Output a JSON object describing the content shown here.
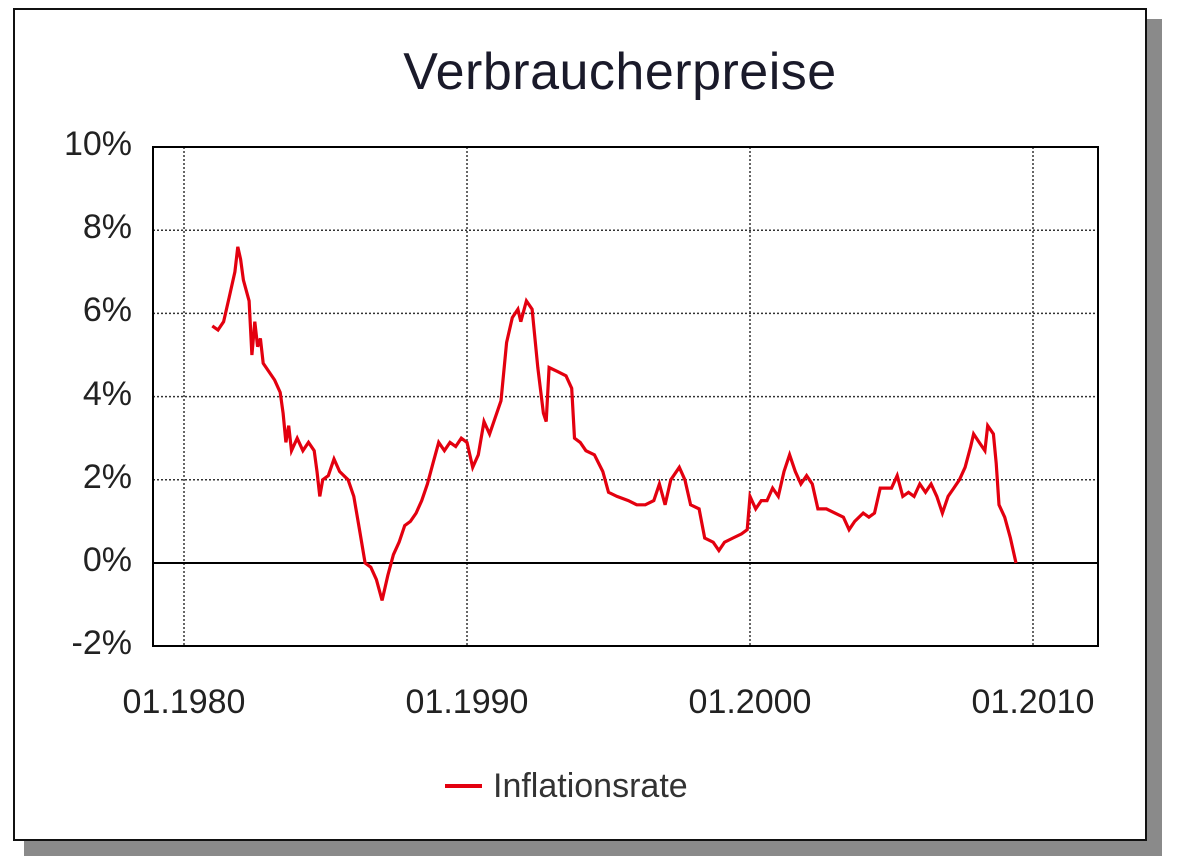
{
  "window": {
    "frame_color": "#111111",
    "shadow_color": "#8a8a8a"
  },
  "chart_data": {
    "type": "line",
    "title": "Verbraucherpreise",
    "xlabel": "",
    "ylabel": "",
    "x_tick_labels": [
      "01.1980",
      "01.1990",
      "01.2000",
      "01.2010"
    ],
    "x_ticks": [
      1980,
      1990,
      2000,
      2010
    ],
    "y_tick_labels": [
      "10%",
      "8%",
      "6%",
      "4%",
      "2%",
      "0%",
      "-2%"
    ],
    "y_ticks": [
      10,
      8,
      6,
      4,
      2,
      0,
      -2
    ],
    "xlim": [
      1979.1,
      2012.3
    ],
    "ylim": [
      -2,
      10
    ],
    "grid": true,
    "legend_position": "bottom",
    "series": [
      {
        "name": "Inflationsrate",
        "color": "#e3000f",
        "points": [
          [
            1981.0,
            5.7
          ],
          [
            1981.2,
            5.6
          ],
          [
            1981.4,
            5.8
          ],
          [
            1981.6,
            6.4
          ],
          [
            1981.8,
            7.0
          ],
          [
            1981.9,
            7.6
          ],
          [
            1982.0,
            7.3
          ],
          [
            1982.1,
            6.8
          ],
          [
            1982.3,
            6.3
          ],
          [
            1982.4,
            5.0
          ],
          [
            1982.5,
            5.8
          ],
          [
            1982.6,
            5.2
          ],
          [
            1982.7,
            5.4
          ],
          [
            1982.8,
            4.8
          ],
          [
            1983.0,
            4.6
          ],
          [
            1983.2,
            4.4
          ],
          [
            1983.4,
            4.1
          ],
          [
            1983.5,
            3.6
          ],
          [
            1983.6,
            2.9
          ],
          [
            1983.7,
            3.3
          ],
          [
            1983.8,
            2.7
          ],
          [
            1984.0,
            3.0
          ],
          [
            1984.2,
            2.7
          ],
          [
            1984.4,
            2.9
          ],
          [
            1984.6,
            2.7
          ],
          [
            1984.7,
            2.2
          ],
          [
            1984.8,
            1.6
          ],
          [
            1984.9,
            2.0
          ],
          [
            1985.1,
            2.1
          ],
          [
            1985.3,
            2.5
          ],
          [
            1985.5,
            2.2
          ],
          [
            1985.8,
            2.0
          ],
          [
            1986.0,
            1.6
          ],
          [
            1986.2,
            0.8
          ],
          [
            1986.4,
            0.0
          ],
          [
            1986.6,
            -0.1
          ],
          [
            1986.8,
            -0.4
          ],
          [
            1987.0,
            -0.9
          ],
          [
            1987.2,
            -0.3
          ],
          [
            1987.4,
            0.2
          ],
          [
            1987.6,
            0.5
          ],
          [
            1987.8,
            0.9
          ],
          [
            1988.0,
            1.0
          ],
          [
            1988.2,
            1.2
          ],
          [
            1988.4,
            1.5
          ],
          [
            1988.6,
            1.9
          ],
          [
            1988.8,
            2.4
          ],
          [
            1989.0,
            2.9
          ],
          [
            1989.2,
            2.7
          ],
          [
            1989.4,
            2.9
          ],
          [
            1989.6,
            2.8
          ],
          [
            1989.8,
            3.0
          ],
          [
            1990.0,
            2.9
          ],
          [
            1990.2,
            2.3
          ],
          [
            1990.4,
            2.6
          ],
          [
            1990.6,
            3.4
          ],
          [
            1990.8,
            3.1
          ],
          [
            1991.0,
            3.5
          ],
          [
            1991.2,
            3.9
          ],
          [
            1991.4,
            5.3
          ],
          [
            1991.6,
            5.9
          ],
          [
            1991.8,
            6.1
          ],
          [
            1991.9,
            5.8
          ],
          [
            1992.1,
            6.3
          ],
          [
            1992.3,
            6.1
          ],
          [
            1992.5,
            4.7
          ],
          [
            1992.7,
            3.6
          ],
          [
            1992.8,
            3.4
          ],
          [
            1992.9,
            4.7
          ],
          [
            1993.2,
            4.6
          ],
          [
            1993.5,
            4.5
          ],
          [
            1993.7,
            4.2
          ],
          [
            1993.8,
            3.0
          ],
          [
            1994.0,
            2.9
          ],
          [
            1994.2,
            2.7
          ],
          [
            1994.5,
            2.6
          ],
          [
            1994.8,
            2.2
          ],
          [
            1995.0,
            1.7
          ],
          [
            1995.3,
            1.6
          ],
          [
            1995.7,
            1.5
          ],
          [
            1996.0,
            1.4
          ],
          [
            1996.3,
            1.4
          ],
          [
            1996.6,
            1.5
          ],
          [
            1996.8,
            1.9
          ],
          [
            1997.0,
            1.4
          ],
          [
            1997.2,
            2.0
          ],
          [
            1997.5,
            2.3
          ],
          [
            1997.7,
            2.0
          ],
          [
            1997.9,
            1.4
          ],
          [
            1998.2,
            1.3
          ],
          [
            1998.4,
            0.6
          ],
          [
            1998.7,
            0.5
          ],
          [
            1998.9,
            0.3
          ],
          [
            1999.1,
            0.5
          ],
          [
            1999.4,
            0.6
          ],
          [
            1999.7,
            0.7
          ],
          [
            1999.9,
            0.8
          ],
          [
            2000.0,
            1.6
          ],
          [
            2000.2,
            1.3
          ],
          [
            2000.4,
            1.5
          ],
          [
            2000.6,
            1.5
          ],
          [
            2000.8,
            1.8
          ],
          [
            2001.0,
            1.6
          ],
          [
            2001.2,
            2.2
          ],
          [
            2001.4,
            2.6
          ],
          [
            2001.6,
            2.2
          ],
          [
            2001.8,
            1.9
          ],
          [
            2002.0,
            2.1
          ],
          [
            2002.2,
            1.9
          ],
          [
            2002.4,
            1.3
          ],
          [
            2002.7,
            1.3
          ],
          [
            2003.0,
            1.2
          ],
          [
            2003.3,
            1.1
          ],
          [
            2003.5,
            0.8
          ],
          [
            2003.7,
            1.0
          ],
          [
            2004.0,
            1.2
          ],
          [
            2004.2,
            1.1
          ],
          [
            2004.4,
            1.2
          ],
          [
            2004.6,
            1.8
          ],
          [
            2004.8,
            1.8
          ],
          [
            2005.0,
            1.8
          ],
          [
            2005.2,
            2.1
          ],
          [
            2005.4,
            1.6
          ],
          [
            2005.6,
            1.7
          ],
          [
            2005.8,
            1.6
          ],
          [
            2006.0,
            1.9
          ],
          [
            2006.2,
            1.7
          ],
          [
            2006.4,
            1.9
          ],
          [
            2006.6,
            1.6
          ],
          [
            2006.8,
            1.2
          ],
          [
            2007.0,
            1.6
          ],
          [
            2007.2,
            1.8
          ],
          [
            2007.4,
            2.0
          ],
          [
            2007.6,
            2.3
          ],
          [
            2007.8,
            2.8
          ],
          [
            2007.9,
            3.1
          ],
          [
            2008.1,
            2.9
          ],
          [
            2008.3,
            2.7
          ],
          [
            2008.4,
            3.3
          ],
          [
            2008.6,
            3.1
          ],
          [
            2008.7,
            2.4
          ],
          [
            2008.8,
            1.4
          ],
          [
            2009.0,
            1.1
          ],
          [
            2009.2,
            0.6
          ],
          [
            2009.4,
            0.0
          ]
        ]
      }
    ]
  },
  "legend": {
    "items": [
      {
        "label": "Inflationsrate",
        "color": "#e3000f"
      }
    ]
  }
}
